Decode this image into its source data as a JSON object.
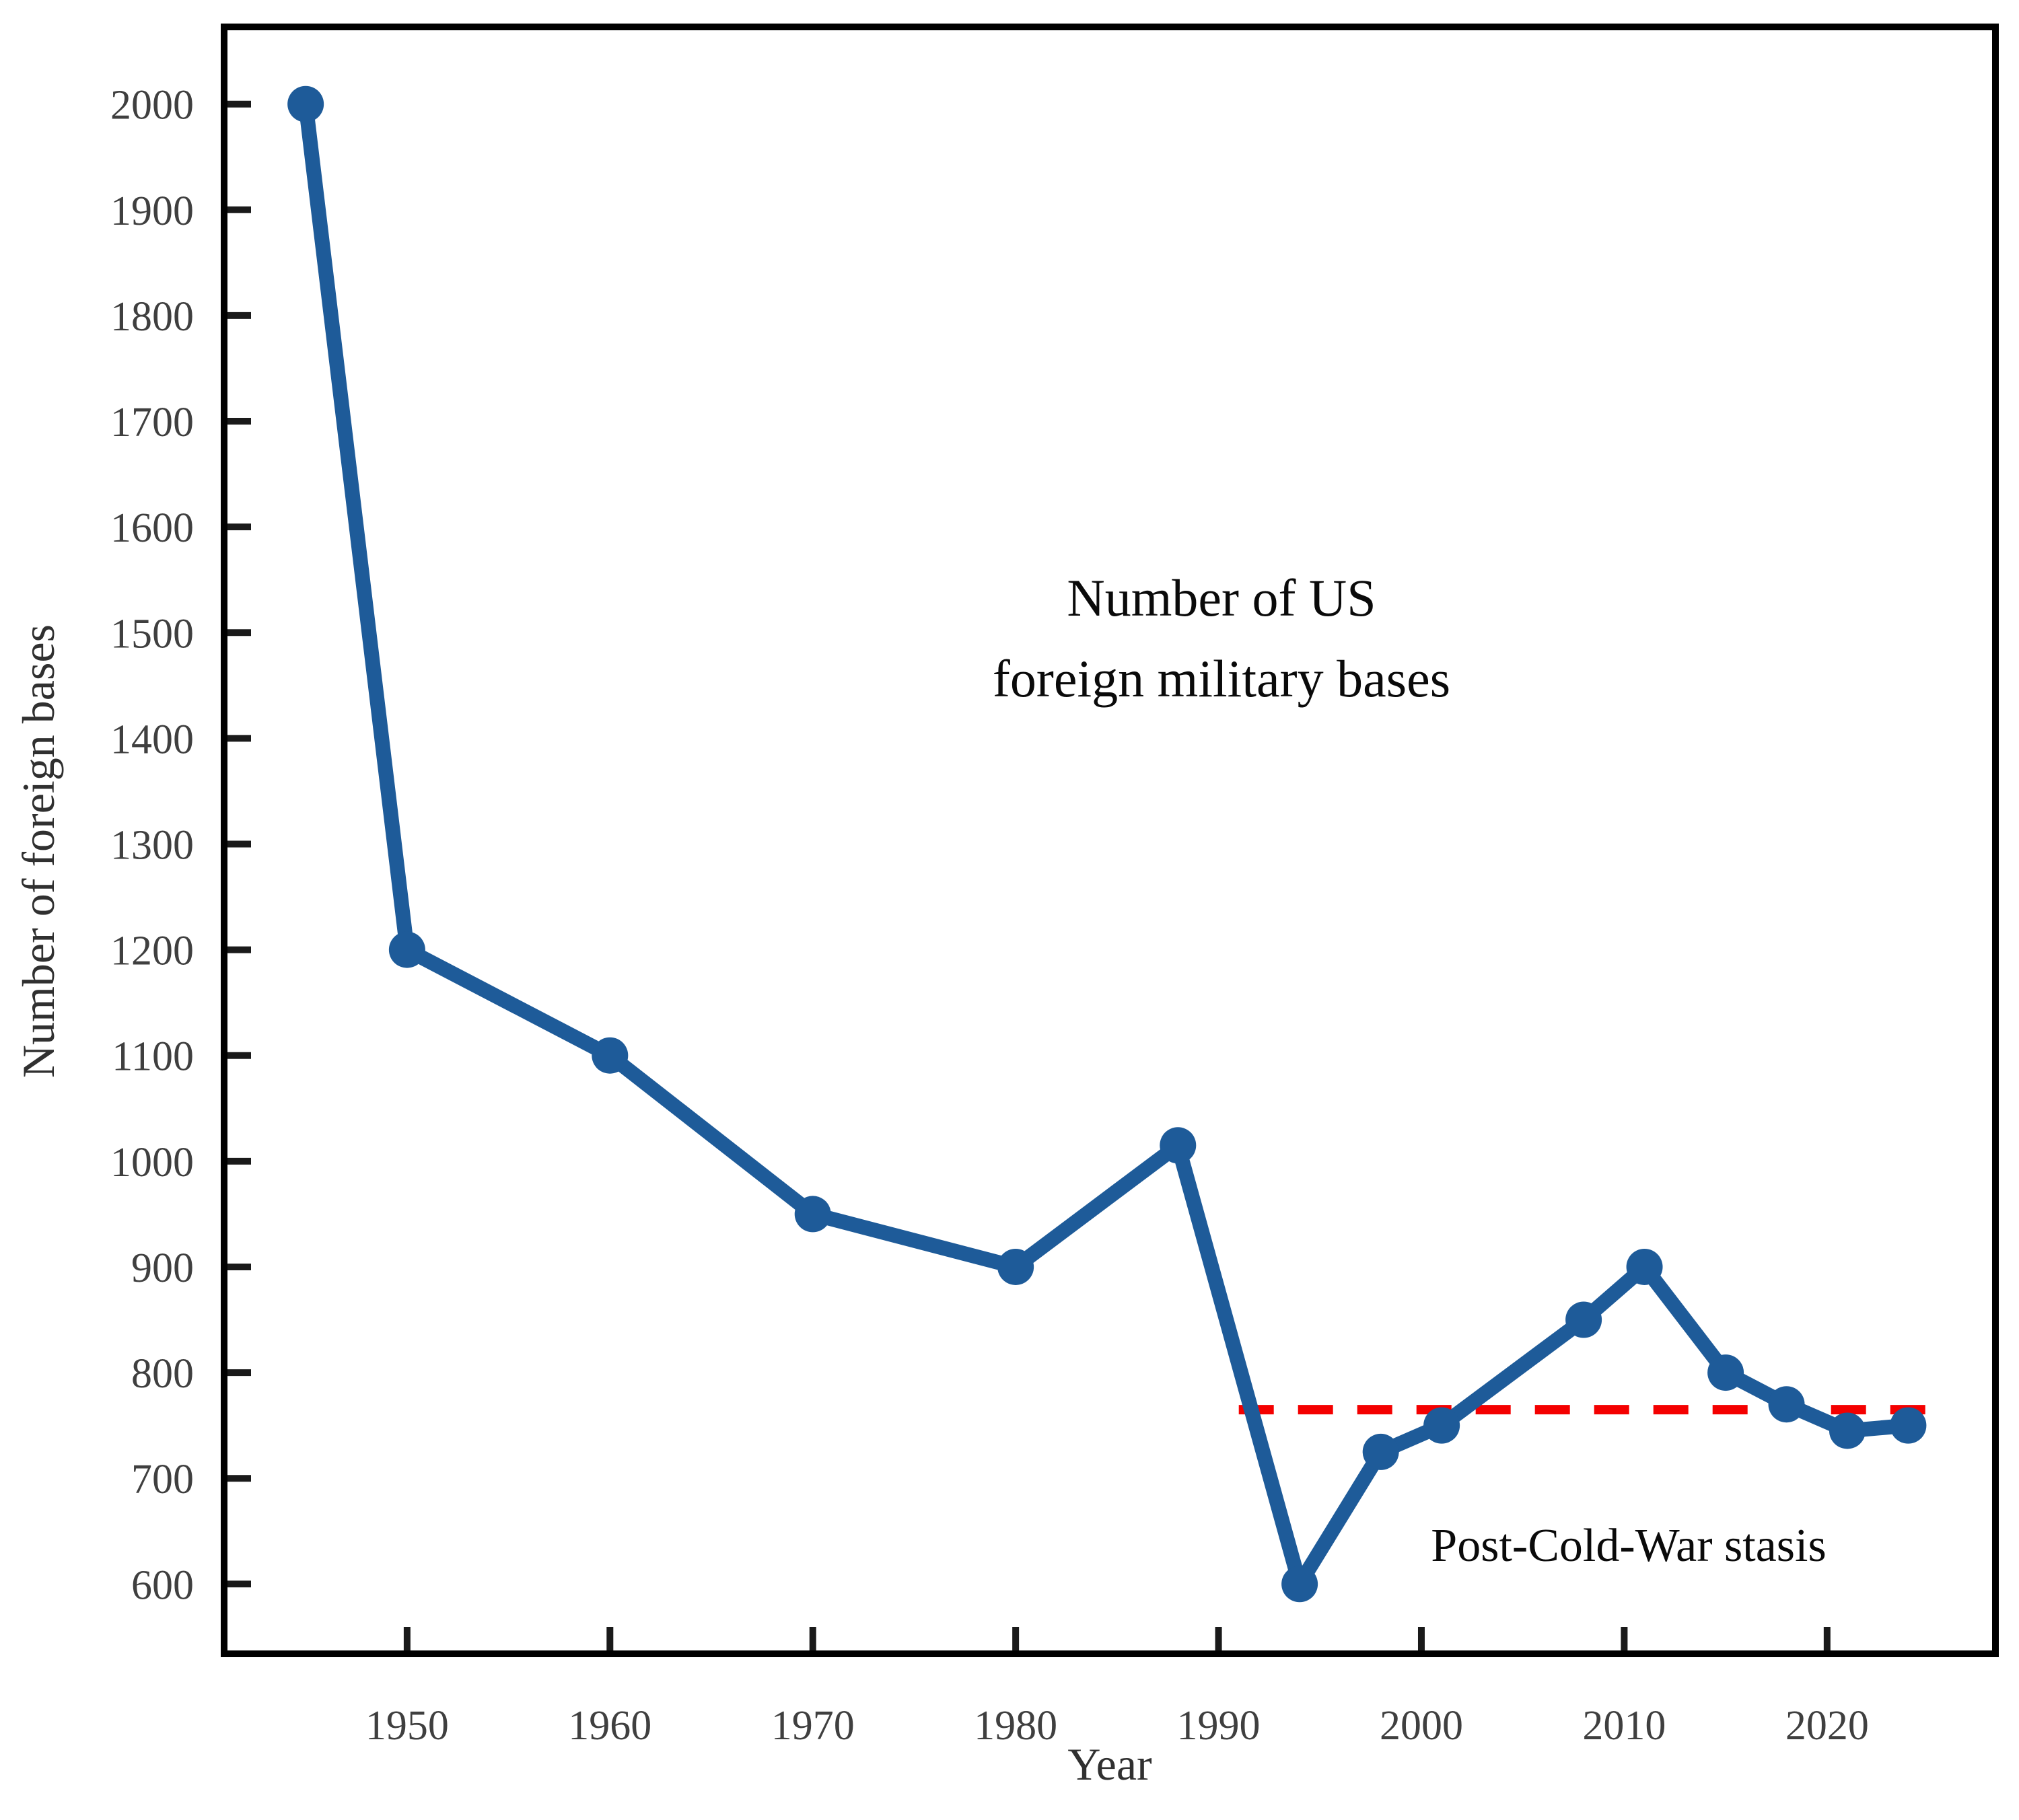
{
  "title": {
    "line1": "Number of US",
    "line2": "foreign military bases"
  },
  "annotation": {
    "label": "Post-Cold-War stasis"
  },
  "axes": {
    "x_label": "Year",
    "y_label": "Number of foreign bases"
  },
  "colors": {
    "series": "#1e5b99",
    "reference": "#f40000",
    "axis": "#000000",
    "tick_text": "#3f3f3f"
  },
  "chart_data": {
    "type": "line",
    "title": "Number of US foreign military bases",
    "xlabel": "Year",
    "ylabel": "Number of foreign bases",
    "x": [
      1945,
      1950,
      1960,
      1970,
      1980,
      1988,
      1994,
      1998,
      2001,
      2008,
      2011,
      2015,
      2018,
      2021,
      2024
    ],
    "values": [
      2000,
      1200,
      1100,
      950,
      900,
      1015,
      600,
      725,
      750,
      850,
      900,
      800,
      770,
      745,
      750
    ],
    "x_ticks": [
      1950,
      1960,
      1970,
      1980,
      1990,
      2000,
      2010,
      2020
    ],
    "y_ticks": [
      600,
      700,
      800,
      900,
      1000,
      1100,
      1200,
      1300,
      1400,
      1500,
      1600,
      1700,
      1800,
      1900,
      2000
    ],
    "x_range": [
      1940.98,
      2028.3
    ],
    "y_range": [
      534,
      2073
    ],
    "grid": false,
    "legend": false,
    "marker": "circle",
    "series_color": "#1e5b99",
    "reference_line": {
      "label": "Post-Cold-War stasis",
      "value": 765,
      "x_start": 1991,
      "x_end": 2025,
      "color": "#f40000",
      "style": "dashed"
    }
  }
}
